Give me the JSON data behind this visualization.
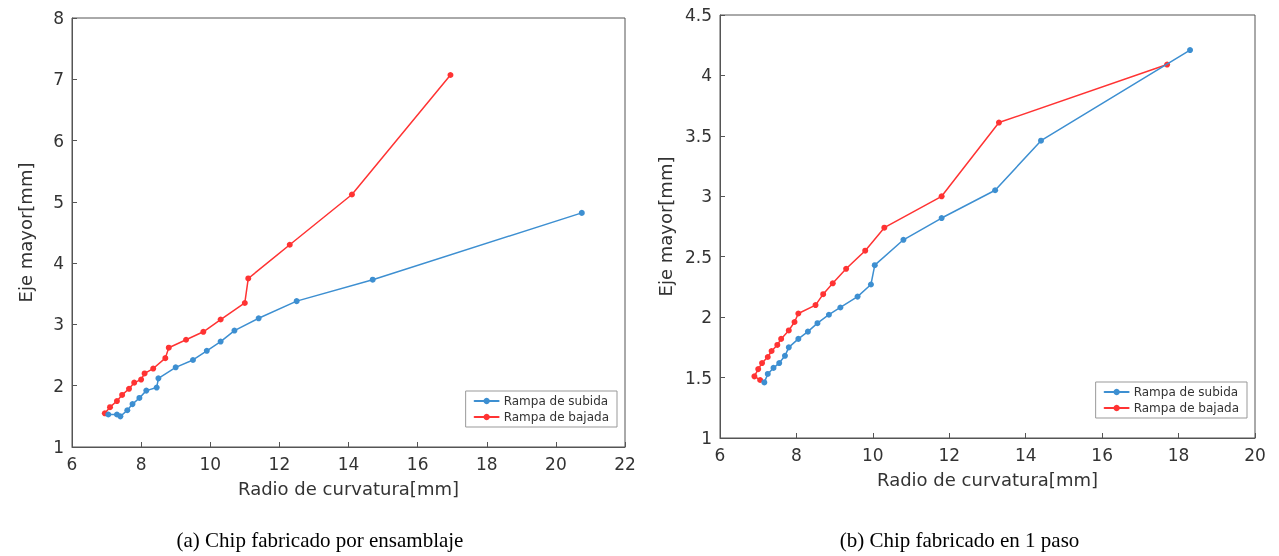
{
  "chart_data": [
    {
      "type": "line",
      "xlabel": "Radio de curvatura[mm]",
      "ylabel": "Eje mayor[mm]",
      "annotations": [
        "(a) Chip fabricado por ensamblaje"
      ],
      "xlim": [
        6,
        22
      ],
      "xticks": [
        6,
        8,
        10,
        12,
        14,
        16,
        18,
        20,
        22
      ],
      "ylim": [
        1,
        8
      ],
      "yticks": [
        1,
        2,
        3,
        4,
        5,
        6,
        7,
        8
      ],
      "grid": false,
      "legend": "bottom right",
      "marker": "circle",
      "line_style": "solid",
      "series": [
        {
          "name": "Rampa de subida",
          "color": "#3d8fd1",
          "x": [
            7.05,
            7.3,
            7.4,
            7.6,
            7.75,
            7.95,
            8.15,
            8.45,
            8.5,
            9.0,
            9.5,
            9.9,
            10.3,
            10.7,
            11.4,
            12.5,
            14.7,
            20.75
          ],
          "values": [
            1.53,
            1.53,
            1.5,
            1.6,
            1.7,
            1.8,
            1.92,
            1.97,
            2.12,
            2.3,
            2.42,
            2.57,
            2.72,
            2.9,
            3.1,
            3.38,
            3.73,
            4.82
          ]
        },
        {
          "name": "Rampa de bajada",
          "color": "#ff3333",
          "x": [
            6.95,
            7.1,
            7.3,
            7.45,
            7.65,
            7.8,
            8.0,
            8.1,
            8.35,
            8.7,
            8.8,
            9.3,
            9.8,
            10.3,
            11.0,
            11.1,
            12.3,
            14.1,
            16.95
          ],
          "values": [
            1.55,
            1.65,
            1.75,
            1.85,
            1.95,
            2.05,
            2.1,
            2.2,
            2.28,
            2.45,
            2.62,
            2.75,
            2.88,
            3.08,
            3.35,
            3.75,
            4.3,
            5.12,
            7.07
          ]
        }
      ]
    },
    {
      "type": "line",
      "xlabel": "Radio de curvatura[mm]",
      "ylabel": "Eje mayor[mm]",
      "annotations": [
        "(b) Chip fabricado en 1 paso"
      ],
      "xlim": [
        6,
        20
      ],
      "xticks": [
        6,
        8,
        10,
        12,
        14,
        16,
        18,
        20
      ],
      "ylim": [
        1,
        4.5
      ],
      "yticks": [
        1,
        1.5,
        2,
        2.5,
        3,
        3.5,
        4,
        4.5
      ],
      "grid": false,
      "legend": "bottom right",
      "marker": "circle",
      "line_style": "solid",
      "series": [
        {
          "name": "Rampa de subida",
          "color": "#3d8fd1",
          "x": [
            7.16,
            7.25,
            7.4,
            7.55,
            7.7,
            7.8,
            8.05,
            8.3,
            8.55,
            8.85,
            9.15,
            9.6,
            9.95,
            10.05,
            10.8,
            11.8,
            13.2,
            14.4,
            18.3
          ],
          "values": [
            1.46,
            1.53,
            1.58,
            1.62,
            1.68,
            1.75,
            1.82,
            1.88,
            1.95,
            2.02,
            2.08,
            2.17,
            2.27,
            2.43,
            2.64,
            2.82,
            3.05,
            3.46,
            4.21
          ]
        },
        {
          "name": "Rampa de bajada",
          "color": "#ff3333",
          "x": [
            7.05,
            6.9,
            7.0,
            7.1,
            7.25,
            7.35,
            7.5,
            7.6,
            7.8,
            7.95,
            8.05,
            8.5,
            8.7,
            8.95,
            9.3,
            9.8,
            10.3,
            11.8,
            13.3,
            17.7
          ],
          "values": [
            1.48,
            1.51,
            1.57,
            1.62,
            1.67,
            1.72,
            1.77,
            1.82,
            1.89,
            1.96,
            2.03,
            2.1,
            2.19,
            2.28,
            2.4,
            2.55,
            2.74,
            3.0,
            3.61,
            4.09
          ]
        }
      ]
    }
  ]
}
